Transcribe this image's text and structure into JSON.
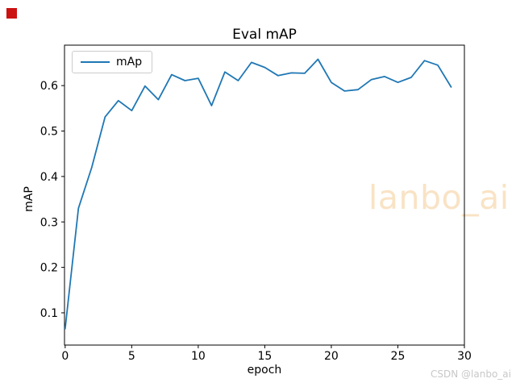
{
  "page": {
    "background": "#ffffff"
  },
  "marker": {
    "name": "red-square",
    "color": "#cc1111"
  },
  "watermark": {
    "text": "lanbo_ai",
    "color": "#f9e3c5"
  },
  "footer_watermark": {
    "text": "CSDN @lanbo_ai",
    "color": "#c8c8c8"
  },
  "chart_data": {
    "type": "line",
    "title": "Eval mAP",
    "xlabel": "epoch",
    "ylabel": "mAP",
    "legend": [
      "mAp"
    ],
    "legend_position": "upper left",
    "line_color": "#1f77b4",
    "axis_color": "#000000",
    "grid": false,
    "xlim": [
      -0.05,
      30.0
    ],
    "ylim": [
      0.029,
      0.689
    ],
    "x_ticks": [
      0,
      5,
      10,
      15,
      20,
      25,
      30
    ],
    "y_ticks": [
      0.1,
      0.2,
      0.3,
      0.4,
      0.5,
      0.6
    ],
    "series": [
      {
        "name": "mAp",
        "x": [
          0,
          1,
          2,
          3,
          4,
          5,
          6,
          7,
          8,
          9,
          10,
          11,
          12,
          13,
          14,
          15,
          16,
          17,
          18,
          19,
          20,
          21,
          22,
          23,
          24,
          25,
          26,
          27,
          28,
          29
        ],
        "values": [
          0.065,
          0.33,
          0.42,
          0.531,
          0.567,
          0.545,
          0.599,
          0.569,
          0.624,
          0.611,
          0.616,
          0.556,
          0.63,
          0.611,
          0.651,
          0.64,
          0.622,
          0.628,
          0.627,
          0.658,
          0.607,
          0.588,
          0.591,
          0.613,
          0.62,
          0.607,
          0.618,
          0.655,
          0.645,
          0.597
        ]
      }
    ]
  }
}
